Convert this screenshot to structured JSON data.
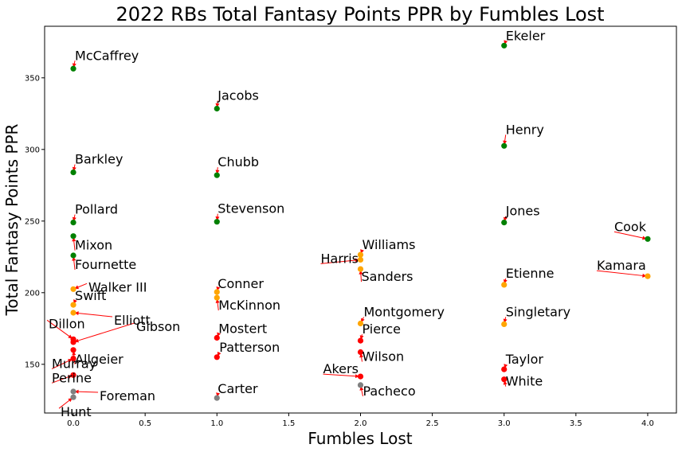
{
  "chart_data": {
    "type": "scatter",
    "title": "2022 RBs Total Fantasy Points PPR by Fumbles Lost",
    "xlabel": "Fumbles Lost",
    "ylabel": "Total Fantasy Points PPR",
    "xlim": [
      -0.2,
      4.2
    ],
    "ylim": [
      116,
      386
    ],
    "xticks": [
      "0.0",
      "0.5",
      "1.0",
      "1.5",
      "2.0",
      "2.5",
      "3.0",
      "3.5",
      "4.0"
    ],
    "yticks": [
      "150",
      "200",
      "250",
      "300",
      "350"
    ],
    "grid": false,
    "colors": {
      "green": "#008000",
      "orange": "#ffa500",
      "red": "#ff0000",
      "gray": "#808080",
      "arrow": "#ff0000"
    },
    "points": [
      {
        "name": "McCaffrey",
        "x": 0,
        "y": 356.4,
        "color": "green"
      },
      {
        "name": "Barkley",
        "x": 0,
        "y": 284,
        "color": "green"
      },
      {
        "name": "Pollard",
        "x": 0,
        "y": 249,
        "color": "green"
      },
      {
        "name": "Mixon",
        "x": 0,
        "y": 239.5,
        "color": "green"
      },
      {
        "name": "Fournette",
        "x": 0,
        "y": 226,
        "color": "green"
      },
      {
        "name": "Walker III",
        "x": 0,
        "y": 202.5,
        "color": "orange"
      },
      {
        "name": "Swift",
        "x": 0,
        "y": 191.5,
        "color": "orange"
      },
      {
        "name": "Elliott",
        "x": 0,
        "y": 186,
        "color": "orange"
      },
      {
        "name": "Dillon",
        "x": 0,
        "y": 167.5,
        "color": "red"
      },
      {
        "name": "Gibson",
        "x": 0,
        "y": 165.5,
        "color": "red"
      },
      {
        "name": "Allgeier",
        "x": 0,
        "y": 160,
        "color": "red"
      },
      {
        "name": "Murray",
        "x": 0,
        "y": 154,
        "color": "red"
      },
      {
        "name": "Perine",
        "x": 0,
        "y": 142.5,
        "color": "red"
      },
      {
        "name": "Foreman",
        "x": 0,
        "y": 131,
        "color": "gray"
      },
      {
        "name": "Hunt",
        "x": 0,
        "y": 127,
        "color": "gray"
      },
      {
        "name": "Jacobs",
        "x": 1,
        "y": 328.5,
        "color": "green"
      },
      {
        "name": "Chubb",
        "x": 1,
        "y": 282,
        "color": "green"
      },
      {
        "name": "Stevenson",
        "x": 1,
        "y": 249.5,
        "color": "green"
      },
      {
        "name": "Conner",
        "x": 1,
        "y": 200.5,
        "color": "orange"
      },
      {
        "name": "McKinnon",
        "x": 1,
        "y": 196.5,
        "color": "orange"
      },
      {
        "name": "Mostert",
        "x": 1,
        "y": 168.5,
        "color": "red"
      },
      {
        "name": "Patterson",
        "x": 1,
        "y": 155,
        "color": "red"
      },
      {
        "name": "Carter",
        "x": 1,
        "y": 126.5,
        "color": "gray"
      },
      {
        "name": "Williams",
        "x": 2,
        "y": 226.5,
        "color": "orange"
      },
      {
        "name": "Harris",
        "x": 2,
        "y": 223,
        "color": "orange"
      },
      {
        "name": "Sanders",
        "x": 2,
        "y": 216.5,
        "color": "orange"
      },
      {
        "name": "Montgomery",
        "x": 2,
        "y": 178.5,
        "color": "orange"
      },
      {
        "name": "Pierce",
        "x": 2,
        "y": 166.5,
        "color": "red"
      },
      {
        "name": "Wilson",
        "x": 2,
        "y": 158.5,
        "color": "red"
      },
      {
        "name": "Akers",
        "x": 2,
        "y": 141.5,
        "color": "red"
      },
      {
        "name": "Pacheco",
        "x": 2,
        "y": 135.5,
        "color": "gray"
      },
      {
        "name": "Ekeler",
        "x": 3,
        "y": 372.5,
        "color": "green"
      },
      {
        "name": "Henry",
        "x": 3,
        "y": 302.5,
        "color": "green"
      },
      {
        "name": "Jones",
        "x": 3,
        "y": 249,
        "color": "green"
      },
      {
        "name": "Etienne",
        "x": 3,
        "y": 205.5,
        "color": "orange"
      },
      {
        "name": "Singletary",
        "x": 3,
        "y": 178,
        "color": "orange"
      },
      {
        "name": "Taylor",
        "x": 3,
        "y": 146.5,
        "color": "red"
      },
      {
        "name": "White",
        "x": 3,
        "y": 139.5,
        "color": "red"
      },
      {
        "name": "Cook",
        "x": 4,
        "y": 237.5,
        "color": "green"
      },
      {
        "name": "Kamara",
        "x": 4,
        "y": 211.5,
        "color": "orange"
      }
    ]
  }
}
